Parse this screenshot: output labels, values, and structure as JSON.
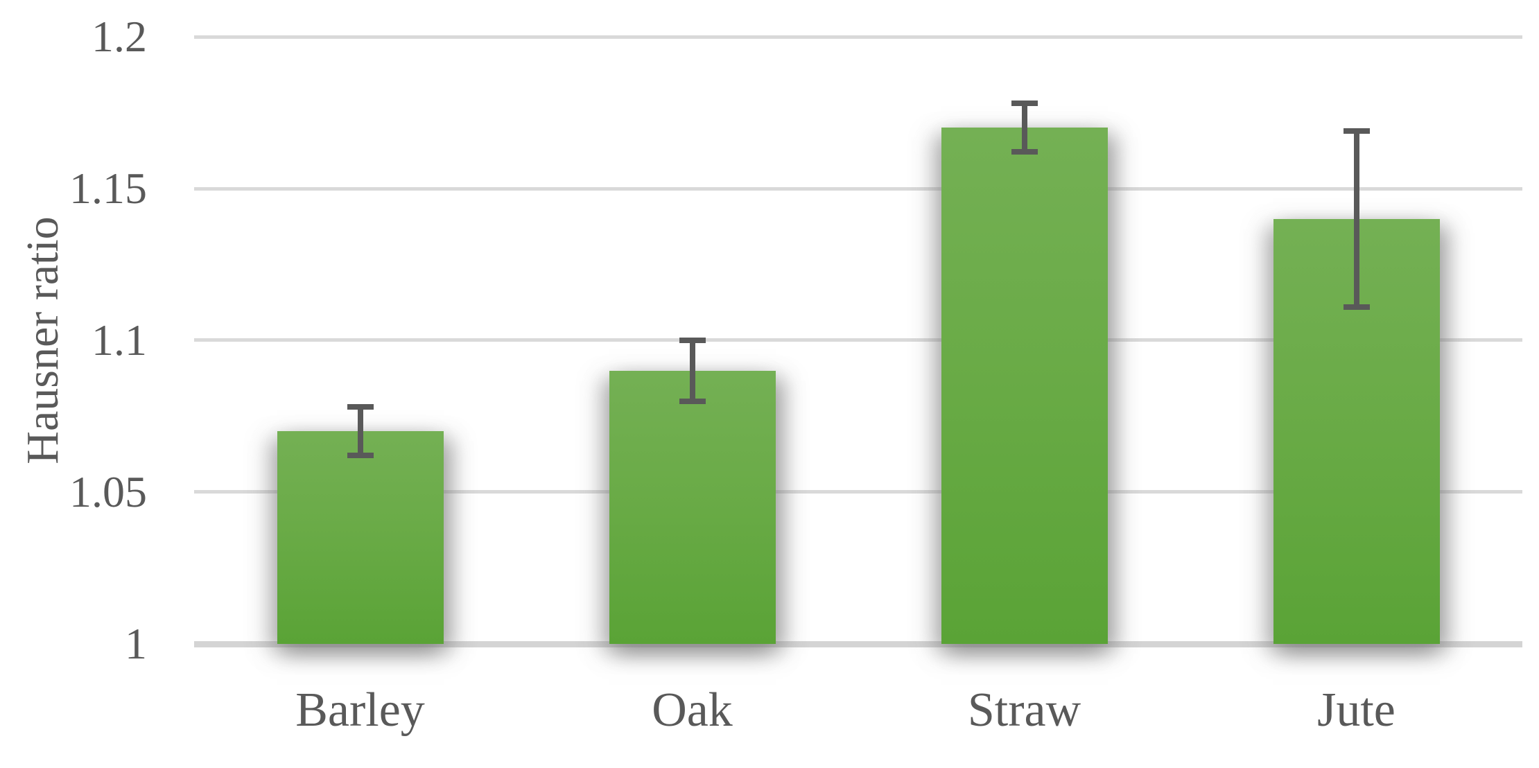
{
  "chart_data": {
    "type": "bar",
    "title": "",
    "xlabel": "",
    "ylabel": "Hausner ratio",
    "categories": [
      "Barley",
      "Oak",
      "Straw",
      "Jute"
    ],
    "values": [
      1.07,
      1.09,
      1.17,
      1.14
    ],
    "error_bars": [
      0.008,
      0.01,
      0.008,
      0.029
    ],
    "ylim": [
      1.0,
      1.2
    ],
    "yticks": [
      1.0,
      1.05,
      1.1,
      1.15,
      1.2
    ],
    "ytick_labels": [
      "1",
      "1.05",
      "1.1",
      "1.15",
      "1.2"
    ],
    "grid": "horizontal",
    "legend": "none",
    "colors": {
      "bar_gradient_top": "#74B054",
      "bar_gradient_bottom": "#5AA336",
      "error_bar": "#595959",
      "text": "#595959",
      "gridline": "#D9D9D9",
      "axis_line": "#D4D4D4",
      "background": "#FFFFFF"
    }
  }
}
